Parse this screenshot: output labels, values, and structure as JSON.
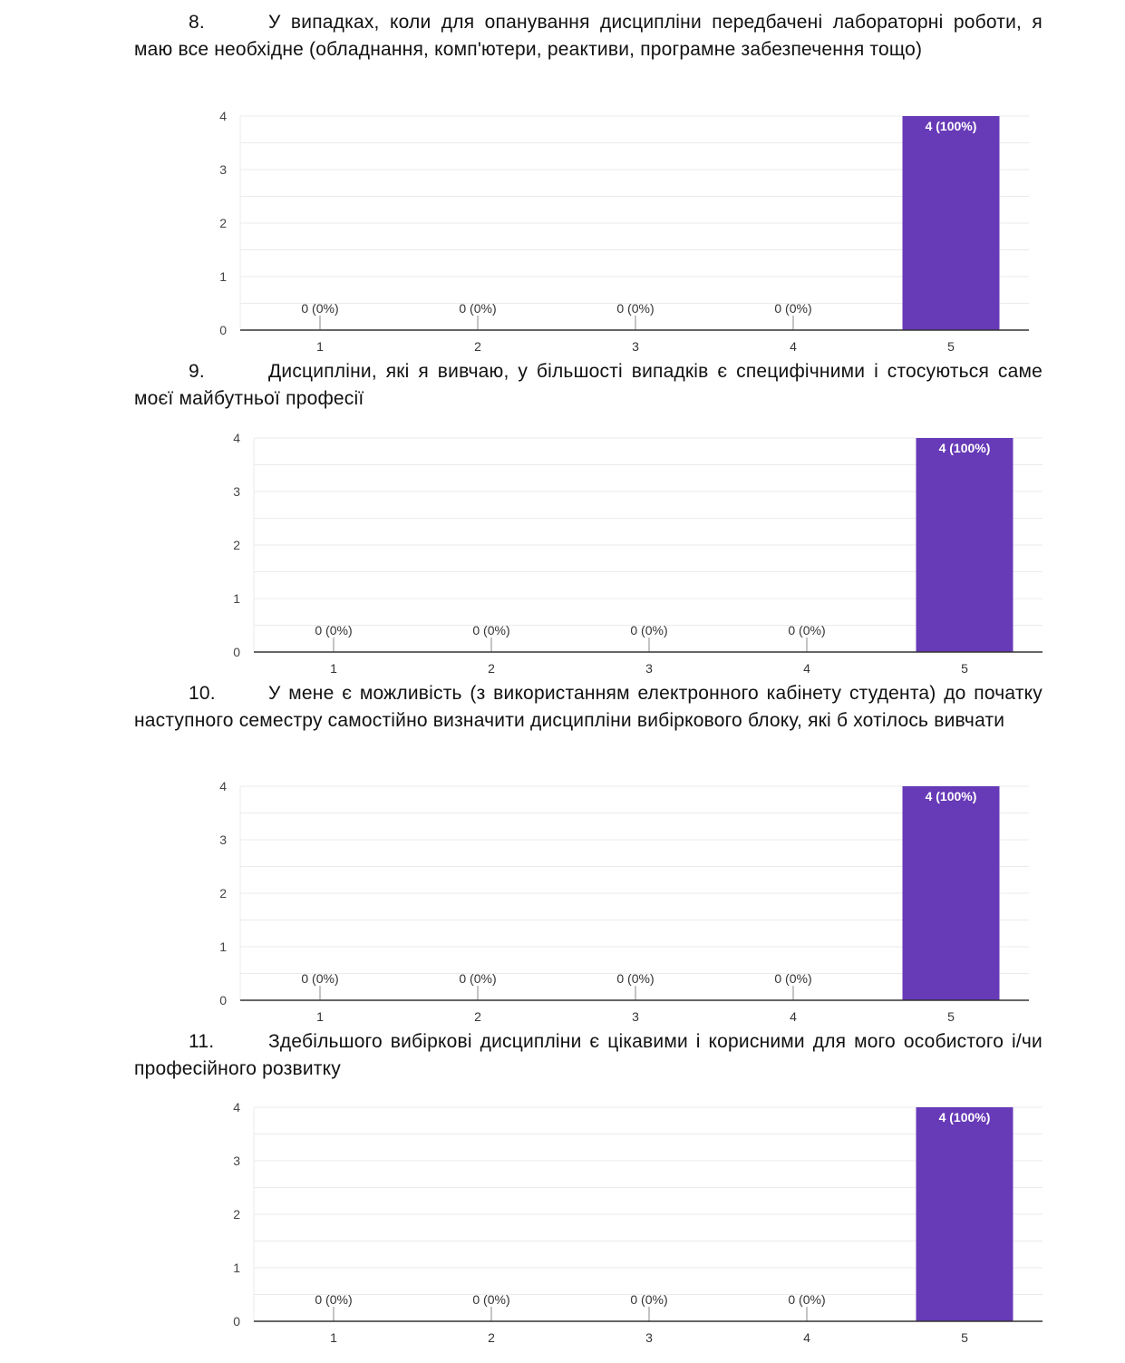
{
  "questions": [
    {
      "number": "8.",
      "text": "У випадках, коли для опанування дисципліни передбачені лабораторні роботи, я маю все необхідне (обладнання, комп'ютери, реактиви, програмне забезпечення тощо)"
    },
    {
      "number": "9.",
      "text": "Дисципліни, які я вивчаю, у більшості випадків є специфічними і стосуються саме моєї майбутньої професії"
    },
    {
      "number": "10.",
      "text": "У мене є можливість (з використанням електронного кабінету студента) до початку наступного семестру самостійно визначити дисципліни вибіркового блоку, які б хотілось вивчати"
    },
    {
      "number": "11.",
      "text": "Здебільшого вибіркові дисципліни є цікавими і корисними для мого особистого і/чи професійного розвитку"
    }
  ],
  "colors": {
    "bar": "#673ab7",
    "grid": "#ebebeb",
    "axis": "#333333"
  },
  "chart_data": [
    {
      "type": "bar",
      "title": "",
      "categories": [
        "1",
        "2",
        "3",
        "4",
        "5"
      ],
      "values": [
        0,
        0,
        0,
        0,
        4
      ],
      "labels": [
        "0 (0%)",
        "0 (0%)",
        "0 (0%)",
        "0 (0%)",
        "4 (100%)"
      ],
      "yticks": [
        "0",
        "1",
        "2",
        "3",
        "4"
      ],
      "ylim": [
        0,
        4
      ],
      "grid": true
    },
    {
      "type": "bar",
      "title": "",
      "categories": [
        "1",
        "2",
        "3",
        "4",
        "5"
      ],
      "values": [
        0,
        0,
        0,
        0,
        4
      ],
      "labels": [
        "0 (0%)",
        "0 (0%)",
        "0 (0%)",
        "0 (0%)",
        "4 (100%)"
      ],
      "yticks": [
        "0",
        "1",
        "2",
        "3",
        "4"
      ],
      "ylim": [
        0,
        4
      ],
      "grid": true
    },
    {
      "type": "bar",
      "title": "",
      "categories": [
        "1",
        "2",
        "3",
        "4",
        "5"
      ],
      "values": [
        0,
        0,
        0,
        0,
        4
      ],
      "labels": [
        "0 (0%)",
        "0 (0%)",
        "0 (0%)",
        "0 (0%)",
        "4 (100%)"
      ],
      "yticks": [
        "0",
        "1",
        "2",
        "3",
        "4"
      ],
      "ylim": [
        0,
        4
      ],
      "grid": true
    },
    {
      "type": "bar",
      "title": "",
      "categories": [
        "1",
        "2",
        "3",
        "4",
        "5"
      ],
      "values": [
        0,
        0,
        0,
        0,
        4
      ],
      "labels": [
        "0 (0%)",
        "0 (0%)",
        "0 (0%)",
        "0 (0%)",
        "4 (100%)"
      ],
      "yticks": [
        "0",
        "1",
        "2",
        "3",
        "4"
      ],
      "ylim": [
        0,
        4
      ],
      "grid": true
    }
  ]
}
